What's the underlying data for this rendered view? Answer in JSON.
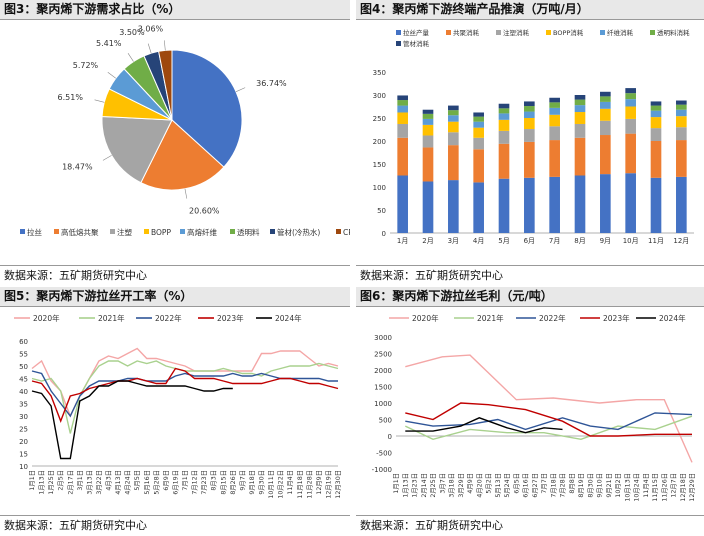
{
  "charts": [
    {
      "type": "pie",
      "title": "图3：聚丙烯下游需求占比（%）",
      "source": "数据来源：五矿期货研究中心",
      "categories": [
        "拉丝",
        "高低熔共聚",
        "注塑",
        "BOPP",
        "高熔纤维",
        "透明料",
        "管材(冷热水)",
        "CPP"
      ],
      "values": [
        36.74,
        20.6,
        18.47,
        6.51,
        5.72,
        5.41,
        3.5,
        3.06
      ],
      "value_labels": [
        "36.74%",
        "20.60%",
        "18.47%",
        "6.51%",
        "5.72%",
        "5.41%",
        "3.50%",
        "3.06%"
      ],
      "colors": [
        "#4472c4",
        "#ed7d31",
        "#a5a5a5",
        "#ffc000",
        "#5b9bd5",
        "#70ad47",
        "#264478",
        "#9e480e"
      ]
    },
    {
      "type": "bar",
      "stacked": true,
      "title": "图4：聚丙烯下游终端产品推演（万吨/月）",
      "source": "数据来源：五矿期货研究中心",
      "categories": [
        "1月",
        "2月",
        "3月",
        "4月",
        "5月",
        "6月",
        "7月",
        "8月",
        "9月",
        "10月",
        "11月",
        "12月"
      ],
      "ylim": [
        0,
        350
      ],
      "yticks": [
        0,
        50,
        100,
        150,
        200,
        250,
        300,
        350
      ],
      "series": [
        {
          "name": "拉丝产量",
          "color": "#4472c4",
          "values": [
            125,
            112,
            115,
            110,
            118,
            120,
            122,
            125,
            128,
            130,
            120,
            122
          ]
        },
        {
          "name": "共聚消耗",
          "color": "#ed7d31",
          "values": [
            82,
            74,
            76,
            72,
            76,
            78,
            80,
            82,
            85,
            86,
            80,
            80
          ]
        },
        {
          "name": "注塑消耗",
          "color": "#a5a5a5",
          "values": [
            30,
            26,
            28,
            25,
            28,
            28,
            30,
            30,
            31,
            32,
            28,
            28
          ]
        },
        {
          "name": "BOPP消耗",
          "color": "#ffc000",
          "values": [
            25,
            23,
            23,
            22,
            24,
            24,
            25,
            26,
            26,
            27,
            24,
            24
          ]
        },
        {
          "name": "纤维消耗",
          "color": "#5b9bd5",
          "values": [
            15,
            13,
            14,
            13,
            14,
            14,
            15,
            15,
            15,
            16,
            14,
            14
          ]
        },
        {
          "name": "透明料消耗",
          "color": "#70ad47",
          "values": [
            12,
            11,
            11,
            11,
            11,
            12,
            12,
            12,
            12,
            13,
            11,
            11
          ]
        },
        {
          "name": "管材消耗",
          "color": "#264478",
          "values": [
            10,
            9,
            10,
            9,
            10,
            10,
            10,
            10,
            10,
            11,
            9,
            9
          ]
        }
      ]
    },
    {
      "type": "line",
      "title": "图5：聚丙烯下游拉丝开工率（%）",
      "source": "数据来源：五矿期货研究中心",
      "ylim": [
        10,
        60
      ],
      "yticks": [
        10,
        15,
        20,
        25,
        30,
        35,
        40,
        45,
        50,
        55,
        60
      ],
      "x_labels": [
        "1月1日",
        "1月13日",
        "1月25日",
        "2月5日",
        "2月17日",
        "3月1日",
        "3月13日",
        "3月22日",
        "4月3日",
        "4月13日",
        "4月24日",
        "5月5日",
        "5月16日",
        "5月28日",
        "6月9日",
        "6月19日",
        "7月1日",
        "7月12日",
        "7月23日",
        "8月3日",
        "8月15日",
        "8月26日",
        "9月7日",
        "9月18日",
        "9月30日",
        "10月11日",
        "10月22日",
        "11月4日",
        "11月18日",
        "11月28日",
        "12月9日",
        "12月19日",
        "12月30日"
      ],
      "series": [
        {
          "name": "2020年",
          "color": "#f4a6a6",
          "values": [
            49,
            52,
            44,
            40,
            30,
            38,
            45,
            52,
            54,
            53,
            55,
            57,
            53,
            53,
            52,
            51,
            50,
            48,
            48,
            48,
            48,
            48,
            48,
            48,
            55,
            55,
            56,
            56,
            56,
            53,
            50,
            51,
            50
          ]
        },
        {
          "name": "2021年",
          "color": "#a9d18e",
          "values": [
            45,
            44,
            45,
            40,
            23,
            38,
            45,
            50,
            52,
            52,
            50,
            52,
            51,
            52,
            50,
            49,
            48,
            48,
            48,
            48,
            49,
            48,
            47,
            47,
            46,
            48,
            49,
            50,
            50,
            50,
            51,
            50,
            49
          ]
        },
        {
          "name": "2022年",
          "color": "#2f5597",
          "values": [
            48,
            47,
            40,
            35,
            30,
            38,
            42,
            44,
            44,
            44,
            45,
            45,
            44,
            44,
            44,
            46,
            47,
            46,
            46,
            46,
            46,
            47,
            46,
            46,
            47,
            46,
            45,
            45,
            45,
            45,
            45,
            44,
            44
          ]
        },
        {
          "name": "2023年",
          "color": "#c00000",
          "values": [
            44,
            43,
            38,
            28,
            38,
            39,
            41,
            42,
            43,
            44,
            44,
            45,
            44,
            43,
            43,
            49,
            48,
            45,
            45,
            45,
            44,
            43,
            43,
            43,
            43,
            44,
            45,
            45,
            44,
            43,
            43,
            42,
            41
          ]
        },
        {
          "name": "2024年",
          "color": "#000000",
          "values": [
            40,
            39,
            34,
            13,
            13,
            36,
            38,
            42,
            42,
            44,
            44,
            43,
            42,
            42,
            42,
            42,
            42,
            41,
            40,
            40,
            41,
            41,
            null,
            null,
            null,
            null,
            null,
            null,
            null,
            null,
            null,
            null,
            null
          ]
        }
      ]
    },
    {
      "type": "line",
      "title": "图6：聚丙烯下游拉丝毛利（元/吨）",
      "source": "数据来源：五矿期货研究中心",
      "ylim": [
        -1000,
        3000
      ],
      "yticks": [
        -1000,
        -500,
        0,
        500,
        1000,
        1500,
        2000,
        2500,
        3000
      ],
      "x_labels": [
        "1月1日",
        "1月13日",
        "1月23日",
        "2月14日",
        "2月25日",
        "3月7日",
        "3月18日",
        "3月29日",
        "4月9日",
        "4月20日",
        "5月2日",
        "5月13日",
        "5月24日",
        "6月5日",
        "6月16日",
        "6月27日",
        "7月7日",
        "7月18日",
        "7月28日",
        "8月8日",
        "8月19日",
        "8月30日",
        "9月10日",
        "9月21日",
        "10月2日",
        "10月13日",
        "10月24日",
        "11月4日",
        "11月15日",
        "11月26日",
        "12月7日",
        "12月18日",
        "12月29日"
      ],
      "series": [
        {
          "name": "2020年",
          "color": "#f4a6a6",
          "x_index": [
            1,
            5,
            8,
            13,
            17,
            22,
            26,
            29,
            32
          ],
          "values": [
            2100,
            2400,
            2450,
            1100,
            1150,
            1000,
            1100,
            1100,
            -800
          ]
        },
        {
          "name": "2021年",
          "color": "#a9d18e",
          "x_index": [
            1,
            4,
            8,
            12,
            16,
            20,
            24,
            28,
            32
          ],
          "values": [
            300,
            -100,
            200,
            100,
            100,
            -100,
            300,
            200,
            600
          ]
        },
        {
          "name": "2022年",
          "color": "#2f5597",
          "x_index": [
            1,
            4,
            8,
            11,
            14,
            18,
            21,
            24,
            28,
            32
          ],
          "values": [
            450,
            300,
            350,
            500,
            200,
            550,
            300,
            200,
            700,
            650
          ]
        },
        {
          "name": "2023年",
          "color": "#c00000",
          "x_index": [
            1,
            4,
            7,
            10,
            14,
            18,
            21,
            24,
            28,
            32
          ],
          "values": [
            700,
            500,
            1000,
            950,
            800,
            450,
            0,
            0,
            50,
            50
          ]
        },
        {
          "name": "2024年",
          "color": "#000000",
          "x_index": [
            1,
            4,
            7,
            9,
            12,
            14,
            16,
            18
          ],
          "values": [
            150,
            150,
            300,
            550,
            250,
            100,
            250,
            200
          ]
        }
      ]
    }
  ]
}
